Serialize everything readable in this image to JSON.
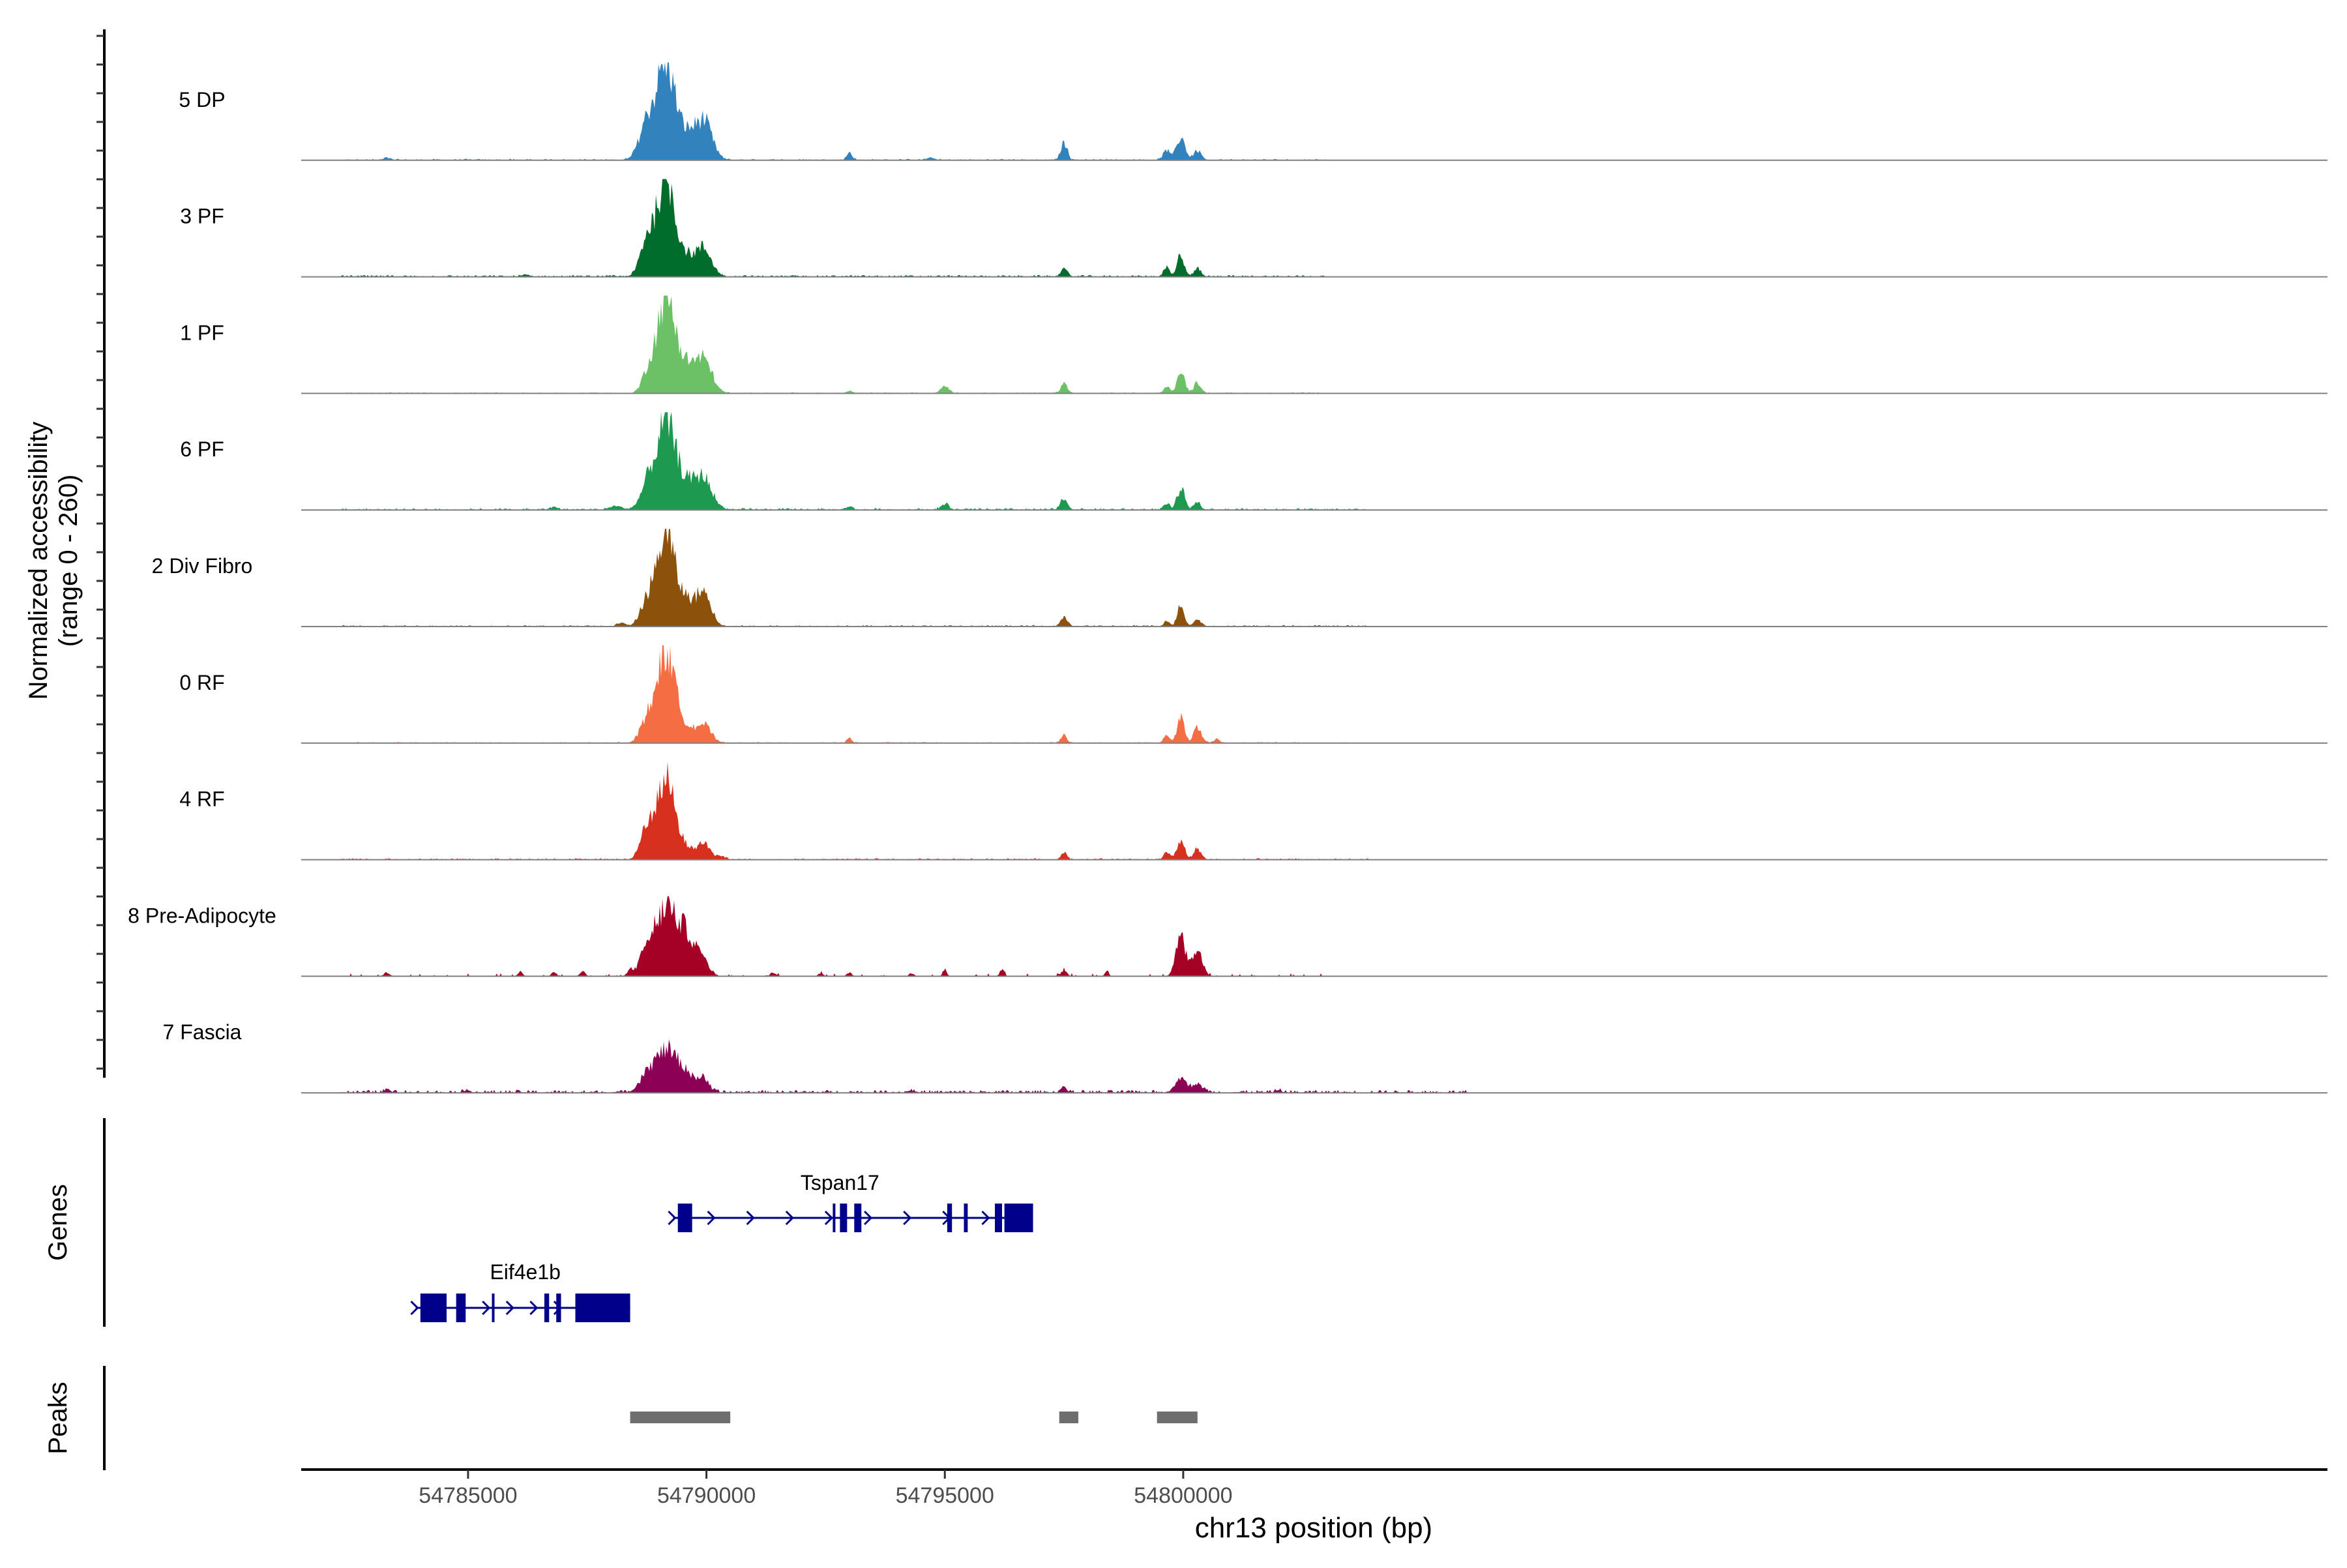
{
  "chart_data": {
    "type": "area",
    "title": "",
    "ylabel_line1": "Normalized accessibility",
    "ylabel_line2": "(range 0 - 260)",
    "yrange": [
      0,
      260
    ],
    "xlabel": "chr13 position (bp)",
    "xlim": [
      54781500,
      54824000
    ],
    "xticks": [
      54785000,
      54790000,
      54795000,
      54800000
    ],
    "tick_labels": [
      "54785000",
      "54790000",
      "54795000",
      "54800000"
    ],
    "tracks": [
      {
        "name": "5 DP",
        "color": "#3182BD",
        "peaks": [
          [
            54789150,
            255,
            190
          ],
          [
            54788750,
            95,
            160
          ],
          [
            54789950,
            98,
            170
          ],
          [
            54789600,
            60,
            180
          ],
          [
            54797500,
            45,
            70
          ],
          [
            54799950,
            60,
            90
          ],
          [
            54799650,
            25,
            70
          ],
          [
            54800300,
            25,
            80
          ],
          [
            54793000,
            18,
            60
          ],
          [
            54783300,
            6,
            60
          ],
          [
            54794700,
            5,
            90
          ]
        ],
        "noise": 4,
        "bg_start": 54782300,
        "bg_end": 54803000
      },
      {
        "name": "3 PF",
        "color": "#006D2C",
        "peaks": [
          [
            54789150,
            260,
            190
          ],
          [
            54788750,
            90,
            140
          ],
          [
            54789950,
            70,
            160
          ],
          [
            54789600,
            45,
            170
          ],
          [
            54799950,
            60,
            70
          ],
          [
            54799650,
            25,
            60
          ],
          [
            54800300,
            20,
            70
          ],
          [
            54797500,
            18,
            70
          ],
          [
            54786200,
            4,
            80
          ]
        ],
        "noise": 5,
        "bg_start": 54782300,
        "bg_end": 54803000
      },
      {
        "name": "1 PF",
        "color": "#6CC167",
        "peaks": [
          [
            54789150,
            255,
            200
          ],
          [
            54788750,
            40,
            110
          ],
          [
            54789950,
            85,
            170
          ],
          [
            54789600,
            60,
            180
          ],
          [
            54795000,
            20,
            80
          ],
          [
            54797500,
            25,
            70
          ],
          [
            54799950,
            55,
            80
          ],
          [
            54799650,
            20,
            60
          ],
          [
            54800300,
            30,
            70
          ],
          [
            54793000,
            6,
            60
          ]
        ],
        "noise": 3,
        "bg_start": 54782300,
        "bg_end": 54803000
      },
      {
        "name": "6 PF",
        "color": "#1E9A50",
        "peaks": [
          [
            54789150,
            235,
            200
          ],
          [
            54788750,
            55,
            140
          ],
          [
            54789950,
            80,
            170
          ],
          [
            54789600,
            60,
            180
          ],
          [
            54788100,
            10,
            120
          ],
          [
            54795000,
            15,
            80
          ],
          [
            54797500,
            30,
            70
          ],
          [
            54799950,
            55,
            80
          ],
          [
            54799650,
            15,
            60
          ],
          [
            54800300,
            20,
            70
          ],
          [
            54793000,
            8,
            60
          ],
          [
            54786800,
            7,
            80
          ]
        ],
        "noise": 5,
        "bg_start": 54782300,
        "bg_end": 54804000
      },
      {
        "name": "2 Div Fibro",
        "color": "#8C510A",
        "peaks": [
          [
            54789150,
            245,
            190
          ],
          [
            54788750,
            60,
            140
          ],
          [
            54789950,
            85,
            150
          ],
          [
            54789600,
            60,
            170
          ],
          [
            54797500,
            22,
            80
          ],
          [
            54799950,
            60,
            70
          ],
          [
            54799650,
            15,
            60
          ],
          [
            54800300,
            20,
            70
          ],
          [
            54788200,
            8,
            90
          ]
        ],
        "noise": 4,
        "bg_start": 54782300,
        "bg_end": 54804000
      },
      {
        "name": "0 RF",
        "color": "#F46D43",
        "peaks": [
          [
            54789150,
            245,
            190
          ],
          [
            54788750,
            55,
            140
          ],
          [
            54789950,
            45,
            150
          ],
          [
            54789600,
            35,
            170
          ],
          [
            54793000,
            15,
            50
          ],
          [
            54797500,
            20,
            60
          ],
          [
            54799950,
            65,
            80
          ],
          [
            54799650,
            20,
            60
          ],
          [
            54800300,
            40,
            80
          ],
          [
            54800700,
            10,
            60
          ]
        ],
        "noise": 3,
        "bg_start": 54782300,
        "bg_end": 54804000
      },
      {
        "name": "4 RF",
        "color": "#D7301F",
        "peaks": [
          [
            54789150,
            215,
            190
          ],
          [
            54788750,
            80,
            130
          ],
          [
            54789950,
            45,
            120
          ],
          [
            54789600,
            25,
            170
          ],
          [
            54790300,
            10,
            80
          ],
          [
            54797500,
            20,
            60
          ],
          [
            54799950,
            50,
            80
          ],
          [
            54799650,
            20,
            60
          ],
          [
            54800300,
            30,
            70
          ]
        ],
        "noise": 4,
        "bg_start": 54782300,
        "bg_end": 54804000
      },
      {
        "name": "8 Pre-Adipocyte",
        "color": "#A50026",
        "peaks": [
          [
            54789150,
            175,
            220
          ],
          [
            54788750,
            60,
            150
          ],
          [
            54789600,
            100,
            200
          ],
          [
            54789950,
            30,
            120
          ],
          [
            54799950,
            110,
            100
          ],
          [
            54800300,
            70,
            100
          ],
          [
            54788400,
            15,
            60
          ],
          [
            54787400,
            15,
            50
          ],
          [
            54786100,
            12,
            50
          ],
          [
            54786800,
            12,
            50
          ],
          [
            54795000,
            20,
            40
          ],
          [
            54796200,
            20,
            40
          ],
          [
            54797500,
            15,
            60
          ],
          [
            54798400,
            15,
            40
          ],
          [
            54783300,
            10,
            60
          ],
          [
            54793000,
            10,
            50
          ],
          [
            54791400,
            10,
            60
          ],
          [
            54794300,
            8,
            50
          ],
          [
            54792400,
            8,
            50
          ]
        ],
        "noise": 8,
        "bg_start": 54782300,
        "bg_end": 54804000,
        "sparse": true
      },
      {
        "name": "7 Fascia",
        "color": "#8C0056",
        "peaks": [
          [
            54789150,
            110,
            220
          ],
          [
            54788750,
            40,
            150
          ],
          [
            54789600,
            45,
            200
          ],
          [
            54789950,
            25,
            120
          ],
          [
            54799950,
            35,
            120
          ],
          [
            54800300,
            20,
            120
          ],
          [
            54797500,
            15,
            60
          ],
          [
            54783300,
            8,
            60
          ],
          [
            54785000,
            6,
            60
          ],
          [
            54794300,
            6,
            60
          ],
          [
            54802000,
            6,
            60
          ]
        ],
        "noise": 8,
        "bg_start": 54782300,
        "bg_end": 54806000
      }
    ],
    "genes_label": "Genes",
    "genes": [
      {
        "name": "Tspan17",
        "start": 54789300,
        "end": 54796700,
        "strand": "+",
        "exons": [
          [
            54789400,
            54789700
          ],
          [
            54792650,
            54792700
          ],
          [
            54792800,
            54792950
          ],
          [
            54793100,
            54793250
          ],
          [
            54795050,
            54795150
          ],
          [
            54795400,
            54795480
          ],
          [
            54796050,
            54796200
          ],
          [
            54796250,
            54796850
          ]
        ]
      },
      {
        "name": "Eif4e1b",
        "start": 54783900,
        "end": 54788400,
        "strand": "+",
        "exons": [
          [
            54784000,
            54784550
          ],
          [
            54784750,
            54784950
          ],
          [
            54785500,
            54785550
          ],
          [
            54786600,
            54786700
          ],
          [
            54786850,
            54786950
          ],
          [
            54787250,
            54788400
          ]
        ]
      }
    ],
    "peaks_label": "Peaks",
    "peak_regions": [
      [
        54788400,
        54790500
      ],
      [
        54797400,
        54797800
      ],
      [
        54799450,
        54800300
      ]
    ]
  }
}
